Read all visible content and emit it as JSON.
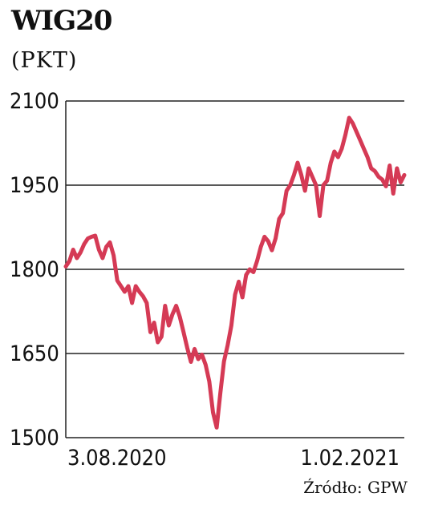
{
  "chart_data": {
    "type": "line",
    "title": "WIG20",
    "subtitle": "(PKT)",
    "source": "Źródło: GPW",
    "xlabel": "",
    "ylabel": "",
    "ylim": [
      1500,
      2100
    ],
    "yticks": [
      1500,
      1650,
      1800,
      1950,
      2100
    ],
    "xtick_labels": [
      "3.08.2020",
      "1.02.2021"
    ],
    "grid": "horizontal",
    "line_color": "#d53a55",
    "series": [
      {
        "values": [
          1805,
          1815,
          1835,
          1820,
          1830,
          1845,
          1855,
          1858,
          1860,
          1835,
          1820,
          1840,
          1848,
          1825,
          1780,
          1770,
          1760,
          1770,
          1740,
          1770,
          1760,
          1752,
          1740,
          1688,
          1705,
          1670,
          1680,
          1735,
          1700,
          1720,
          1735,
          1715,
          1688,
          1660,
          1635,
          1658,
          1640,
          1648,
          1630,
          1600,
          1545,
          1518,
          1580,
          1636,
          1665,
          1700,
          1755,
          1778,
          1750,
          1790,
          1800,
          1795,
          1815,
          1840,
          1858,
          1850,
          1834,
          1855,
          1890,
          1900,
          1940,
          1950,
          1968,
          1990,
          1968,
          1940,
          1980,
          1965,
          1950,
          1895,
          1950,
          1958,
          1990,
          2010,
          2000,
          2015,
          2040,
          2070,
          2060,
          2045,
          2030,
          2015,
          2000,
          1980,
          1975,
          1965,
          1960,
          1948,
          1985,
          1935,
          1980,
          1955,
          1968
        ]
      }
    ]
  }
}
